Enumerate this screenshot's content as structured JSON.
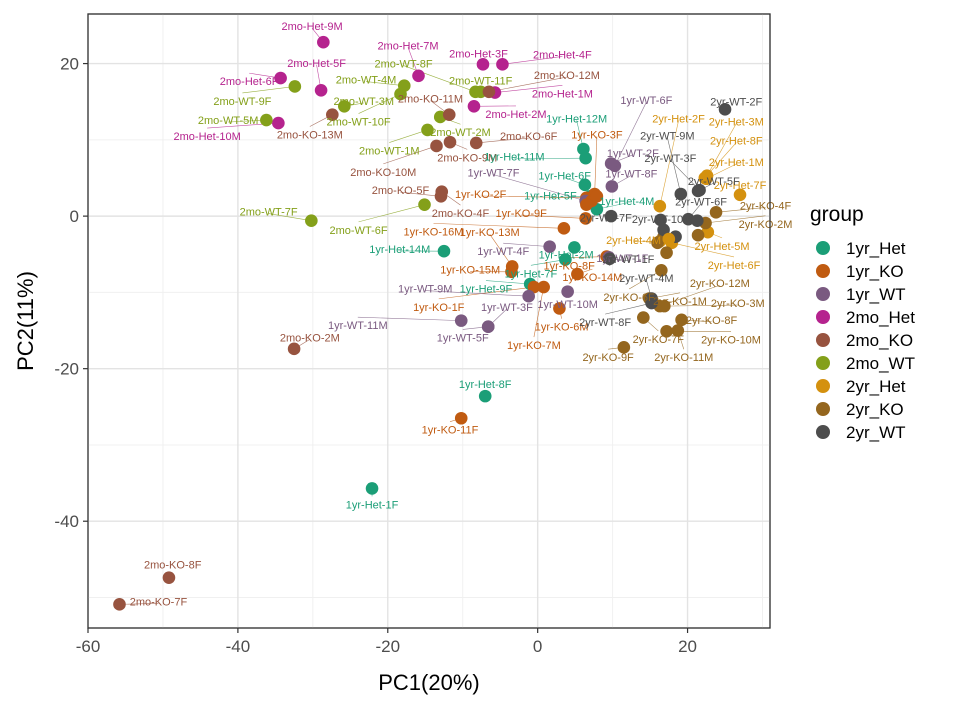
{
  "chart_data": {
    "type": "scatter",
    "xlabel": "PC1(20%)",
    "ylabel": "PC2(11%)",
    "xlim": [
      -60,
      31
    ],
    "ylim": [
      -54,
      26.5
    ],
    "x_ticks": [
      -60,
      -40,
      -20,
      0,
      20
    ],
    "y_ticks": [
      -40,
      -20,
      0,
      20
    ],
    "x_tick_labels": [
      "-60",
      "-40",
      "-20",
      "0",
      "20"
    ],
    "y_tick_labels": [
      "-40",
      "-20",
      "0",
      "20"
    ],
    "grid": true,
    "legend_position": "right",
    "legend": {
      "title": "group",
      "items": [
        "1yr_Het",
        "1yr_KO",
        "1yr_WT",
        "2mo_Het",
        "2mo_KO",
        "2mo_WT",
        "2yr_Het",
        "2yr_KO",
        "2yr_WT"
      ]
    },
    "colors": {
      "1yr_Het": "#1b9e77",
      "1yr_KO": "#c05b11",
      "1yr_WT": "#7a5a80",
      "2mo_Het": "#b5238e",
      "2mo_KO": "#97533f",
      "2mo_WT": "#84a01a",
      "2yr_Het": "#d4910f",
      "2yr_KO": "#94661e",
      "2yr_WT": "#4d4d4d"
    },
    "points": [
      {
        "label": "2mo-Het-9M",
        "group": "2mo_Het",
        "x": -28.6,
        "y": 22.8,
        "lx": -30.1,
        "ly": 24.9
      },
      {
        "label": "2mo-Het-5F",
        "group": "2mo_Het",
        "x": -28.9,
        "y": 16.5,
        "lx": -29.5,
        "ly": 20.1
      },
      {
        "label": "2mo-Het-6F",
        "group": "2mo_Het",
        "x": -34.3,
        "y": 18.1,
        "lx": -38.5,
        "ly": 17.7
      },
      {
        "label": "2mo-Het-10M",
        "group": "2mo_Het",
        "x": -34.6,
        "y": 12.2,
        "lx": -44.1,
        "ly": 10.5
      },
      {
        "label": "2mo-Het-7M",
        "group": "2mo_Het",
        "x": -15.9,
        "y": 18.4,
        "lx": -17.3,
        "ly": 22.4
      },
      {
        "label": "2mo-Het-3F",
        "group": "2mo_Het",
        "x": -7.3,
        "y": 19.9,
        "lx": -7.9,
        "ly": 21.3
      },
      {
        "label": "2mo-Het-4F",
        "group": "2mo_Het",
        "x": -4.7,
        "y": 19.9,
        "lx": 3.3,
        "ly": 21.2
      },
      {
        "label": "2mo-Het-1M",
        "group": "2mo_Het",
        "x": -5.7,
        "y": 16.2,
        "lx": 3.3,
        "ly": 16.1
      },
      {
        "label": "2mo-Het-2M",
        "group": "2mo_Het",
        "x": -8.5,
        "y": 14.4,
        "lx": -2.9,
        "ly": 13.4
      },
      {
        "label": "2mo-WT-4M",
        "group": "2mo_WT",
        "x": -17.8,
        "y": 17.1,
        "lx": -22.9,
        "ly": 17.9
      },
      {
        "label": "2mo-WT-8F",
        "group": "2mo_WT",
        "x": -8.3,
        "y": 16.3,
        "lx": -17.9,
        "ly": 20.0
      },
      {
        "label": "2mo-WT-11F",
        "group": "2mo_WT",
        "x": -7.6,
        "y": 16.3,
        "lx": -7.6,
        "ly": 17.8
      },
      {
        "label": "2mo-WT-9F",
        "group": "2mo_WT",
        "x": -32.4,
        "y": 17.0,
        "lx": -39.4,
        "ly": 15.1
      },
      {
        "label": "2mo-WT-3M",
        "group": "2mo_WT",
        "x": -25.8,
        "y": 14.4,
        "lx": -23.2,
        "ly": 15.1
      },
      {
        "label": "2mo-WT-5M",
        "group": "2mo_WT",
        "x": -36.2,
        "y": 12.6,
        "lx": -41.3,
        "ly": 12.6
      },
      {
        "label": "2mo-WT-10F",
        "group": "2mo_WT",
        "x": -18.3,
        "y": 16.0,
        "lx": -23.9,
        "ly": 12.4
      },
      {
        "label": "2mo-WT-1M",
        "group": "2mo_WT",
        "x": -14.7,
        "y": 11.3,
        "lx": -19.8,
        "ly": 8.6
      },
      {
        "label": "2mo-WT-2M",
        "group": "2mo_WT",
        "x": -13.0,
        "y": 13.0,
        "lx": -10.3,
        "ly": 11.0
      },
      {
        "label": "2mo-WT-7F",
        "group": "2mo_WT",
        "x": -30.2,
        "y": -0.6,
        "lx": -35.9,
        "ly": 0.6
      },
      {
        "label": "2mo-WT-6F",
        "group": "2mo_WT",
        "x": -15.1,
        "y": 1.5,
        "lx": -23.9,
        "ly": -1.8
      },
      {
        "label": "2mo-KO-12M",
        "group": "2mo_KO",
        "x": -6.5,
        "y": 16.3,
        "lx": 3.9,
        "ly": 18.5
      },
      {
        "label": "2mo-KO-11M",
        "group": "2mo_KO",
        "x": -11.8,
        "y": 13.3,
        "lx": -14.3,
        "ly": 15.4
      },
      {
        "label": "2mo-KO-13M",
        "group": "2mo_KO",
        "x": -27.4,
        "y": 13.3,
        "lx": -30.4,
        "ly": 10.7
      },
      {
        "label": "2mo-KO-6F",
        "group": "2mo_KO",
        "x": -8.2,
        "y": 9.6,
        "lx": -1.2,
        "ly": 10.5
      },
      {
        "label": "2mo-KO-9M",
        "group": "2mo_KO",
        "x": -11.7,
        "y": 9.7,
        "lx": -9.4,
        "ly": 7.7
      },
      {
        "label": "2mo-KO-10M",
        "group": "2mo_KO",
        "x": -13.5,
        "y": 9.2,
        "lx": -20.6,
        "ly": 5.8
      },
      {
        "label": "2mo-KO-5F",
        "group": "2mo_KO",
        "x": -12.9,
        "y": 2.6,
        "lx": -18.3,
        "ly": 3.4
      },
      {
        "label": "2mo-KO-4F",
        "group": "2mo_KO",
        "x": -12.8,
        "y": 3.2,
        "lx": -10.3,
        "ly": 0.4
      },
      {
        "label": "2mo-KO-2M",
        "group": "2mo_KO",
        "x": -32.5,
        "y": -17.4,
        "lx": -30.4,
        "ly": -15.9
      },
      {
        "label": "2mo-KO-8F",
        "group": "2mo_KO",
        "x": -49.2,
        "y": -47.4,
        "lx": -48.7,
        "ly": -45.7
      },
      {
        "label": "2mo-KO-7F",
        "group": "2mo_KO",
        "x": -55.8,
        "y": -50.9,
        "lx": -50.6,
        "ly": -50.5
      },
      {
        "label": "1yr-Het-12M",
        "group": "1yr_Het",
        "x": 6.1,
        "y": 8.8,
        "lx": 5.2,
        "ly": 12.8
      },
      {
        "label": "1yr-Het-11M",
        "group": "1yr_Het",
        "x": 6.4,
        "y": 7.6,
        "lx": -3.1,
        "ly": 7.8
      },
      {
        "label": "1yr-Het-6F",
        "group": "1yr_Het",
        "x": 6.3,
        "y": 4.1,
        "lx": 3.6,
        "ly": 5.3
      },
      {
        "label": "1yr-Het-5F",
        "group": "1yr_Het",
        "x": 7.0,
        "y": 2.6,
        "lx": 1.7,
        "ly": 2.7
      },
      {
        "label": "1yr-Het-4M",
        "group": "1yr_Het",
        "x": 7.9,
        "y": 0.9,
        "lx": 11.9,
        "ly": 2.0
      },
      {
        "label": "1yr-Het-14M",
        "group": "1yr_Het",
        "x": -12.5,
        "y": -4.6,
        "lx": -18.4,
        "ly": -4.3
      },
      {
        "label": "1yr-Het-2M",
        "group": "1yr_Het",
        "x": 4.9,
        "y": -4.1,
        "lx": 3.8,
        "ly": -5.0
      },
      {
        "label": "1yr-Het-7F",
        "group": "1yr_Het",
        "x": 3.7,
        "y": -5.7,
        "lx": -0.9,
        "ly": -7.5
      },
      {
        "label": "1yr-Het-9F",
        "group": "1yr_Het",
        "x": -1.0,
        "y": -8.9,
        "lx": -6.9,
        "ly": -9.5
      },
      {
        "label": "1yr-Het-8F",
        "group": "1yr_Het",
        "x": -7.0,
        "y": -23.6,
        "lx": -7.0,
        "ly": -22.0
      },
      {
        "label": "1yr-Het-1F",
        "group": "1yr_Het",
        "x": -22.1,
        "y": -35.7,
        "lx": -22.1,
        "ly": -37.8
      },
      {
        "label": "1yr-KO-3F",
        "group": "1yr_KO",
        "x": 7.6,
        "y": 2.9,
        "lx": 7.9,
        "ly": 10.7
      },
      {
        "label": "1yr-KO-2F",
        "group": "1yr_KO",
        "x": 6.5,
        "y": 2.4,
        "lx": -7.6,
        "ly": 2.9
      },
      {
        "label": "1yr-KO-9F",
        "group": "1yr_KO",
        "x": 6.4,
        "y": -0.3,
        "lx": -2.2,
        "ly": 0.4
      },
      {
        "label": "1yr-KO-16M",
        "group": "1yr_KO",
        "x": 3.5,
        "y": -1.6,
        "lx": -13.9,
        "ly": -2.0
      },
      {
        "label": "1yr-KO-13M",
        "group": "1yr_KO",
        "x": -3.4,
        "y": -6.6,
        "lx": -6.4,
        "ly": -2.1
      },
      {
        "label": "1yr-KO-8F",
        "group": "1yr_KO",
        "x": 9.2,
        "y": -5.3,
        "lx": 4.2,
        "ly": -6.5
      },
      {
        "label": "1yr-KO-15M",
        "group": "1yr_KO",
        "x": -3.5,
        "y": -7.3,
        "lx": -9.0,
        "ly": -7.0
      },
      {
        "label": "1yr-KO-14M",
        "group": "1yr_KO",
        "x": 5.3,
        "y": -7.6,
        "lx": 7.3,
        "ly": -8.0
      },
      {
        "label": "1yr-KO-1F",
        "group": "1yr_KO",
        "x": -0.5,
        "y": -9.3,
        "lx": -13.2,
        "ly": -11.9
      },
      {
        "label": "1yr-KO-6M",
        "group": "1yr_KO",
        "x": 2.9,
        "y": -12.1,
        "lx": 3.2,
        "ly": -14.5
      },
      {
        "label": "1yr-KO-7M",
        "group": "1yr_KO",
        "x": 0.8,
        "y": -9.3,
        "lx": -0.5,
        "ly": -16.9
      },
      {
        "label": "1yr-KO-11F",
        "group": "1yr_KO",
        "x": -10.2,
        "y": -26.5,
        "lx": -11.7,
        "ly": -28.0
      },
      {
        "label": "1yr-WT-6F",
        "group": "1yr_WT",
        "x": 10.3,
        "y": 6.6,
        "lx": 14.5,
        "ly": 15.2
      },
      {
        "label": "1yr-WT-2F",
        "group": "1yr_WT",
        "x": 9.8,
        "y": 6.9,
        "lx": 12.7,
        "ly": 8.3
      },
      {
        "label": "1yr-WT-8F",
        "group": "1yr_WT",
        "x": 9.9,
        "y": 3.9,
        "lx": 12.5,
        "ly": 5.6
      },
      {
        "label": "1yr-WT-7F",
        "group": "1yr_WT",
        "x": 6.4,
        "y": 2.0,
        "lx": -5.9,
        "ly": 5.7
      },
      {
        "label": "1yr-WT-4F",
        "group": "1yr_WT",
        "x": 1.6,
        "y": -4.0,
        "lx": -4.6,
        "ly": -4.6
      },
      {
        "label": "1yr-WT-1F",
        "group": "1yr_WT",
        "x": 9.5,
        "y": -5.4,
        "lx": 11.3,
        "ly": -5.5
      },
      {
        "label": "1yr-WT-10M",
        "group": "1yr_WT",
        "x": 4.0,
        "y": -9.9,
        "lx": 4.0,
        "ly": -11.5
      },
      {
        "label": "1yr-WT-9M",
        "group": "1yr_WT",
        "x": -1.2,
        "y": -10.5,
        "lx": -15.0,
        "ly": -9.5
      },
      {
        "label": "1yr-WT-3F",
        "group": "1yr_WT",
        "x": -6.6,
        "y": -14.5,
        "lx": -4.1,
        "ly": -11.9
      },
      {
        "label": "1yr-WT-11M",
        "group": "1yr_WT",
        "x": -10.2,
        "y": -13.7,
        "lx": -24.0,
        "ly": -14.3
      },
      {
        "label": "1yr-WT-5F",
        "group": "1yr_WT",
        "x": -6.6,
        "y": -14.5,
        "lx": -10.0,
        "ly": -15.9
      },
      {
        "label": "2yr-Het-2F",
        "group": "2yr_Het",
        "x": 16.3,
        "y": 1.3,
        "lx": 18.8,
        "ly": 12.8
      },
      {
        "label": "2yr-Het-3M",
        "group": "2yr_Het",
        "x": 22.6,
        "y": 5.3,
        "lx": 26.5,
        "ly": 12.4
      },
      {
        "label": "2yr-Het-8F",
        "group": "2yr_Het",
        "x": 22.3,
        "y": 5.0,
        "lx": 26.5,
        "ly": 9.9
      },
      {
        "label": "2yr-Het-1M",
        "group": "2yr_Het",
        "x": 22.5,
        "y": 4.9,
        "lx": 26.5,
        "ly": 7.1
      },
      {
        "label": "2yr-Het-7F",
        "group": "2yr_Het",
        "x": 27.0,
        "y": 2.8,
        "lx": 27.0,
        "ly": 4.1
      },
      {
        "label": "2yr-Het-4M",
        "group": "2yr_Het",
        "x": 16.3,
        "y": -3.3,
        "lx": 12.8,
        "ly": -3.1
      },
      {
        "label": "2yr-Het-5M",
        "group": "2yr_Het",
        "x": 22.7,
        "y": -2.1,
        "lx": 24.6,
        "ly": -3.9
      },
      {
        "label": "2yr-Het-6F",
        "group": "2yr_Het",
        "x": 17.9,
        "y": -3.5,
        "lx": 26.2,
        "ly": -6.4
      },
      {
        "label": "2yr-KO-4F",
        "group": "2yr_KO",
        "x": 23.8,
        "y": 0.5,
        "lx": 30.4,
        "ly": 1.4
      },
      {
        "label": "2yr-KO-2M",
        "group": "2yr_KO",
        "x": 22.4,
        "y": -0.9,
        "lx": 30.4,
        "ly": -1.0
      },
      {
        "label": "2yr-KO-6F",
        "group": "2yr_KO",
        "x": 16.5,
        "y": -7.1,
        "lx": 12.2,
        "ly": -10.6
      },
      {
        "label": "2yr-KO-12M",
        "group": "2yr_KO",
        "x": 16.3,
        "y": -11.8,
        "lx": 24.3,
        "ly": -8.8
      },
      {
        "label": "2yr-KO-3M",
        "group": "2yr_KO",
        "x": 16.9,
        "y": -11.8,
        "lx": 26.7,
        "ly": -11.4
      },
      {
        "label": "2yr-KO-1M",
        "group": "2yr_KO",
        "x": 14.9,
        "y": -10.8,
        "lx": 19.0,
        "ly": -11.1
      },
      {
        "label": "2yr-KO-8F",
        "group": "2yr_KO",
        "x": 19.2,
        "y": -13.6,
        "lx": 23.2,
        "ly": -13.6
      },
      {
        "label": "2yr-KO-7F",
        "group": "2yr_KO",
        "x": 14.1,
        "y": -13.3,
        "lx": 16.1,
        "ly": -16.1
      },
      {
        "label": "2yr-KO-10M",
        "group": "2yr_KO",
        "x": 17.2,
        "y": -15.1,
        "lx": 25.8,
        "ly": -16.2
      },
      {
        "label": "2yr-KO-9F",
        "group": "2yr_KO",
        "x": 11.5,
        "y": -17.2,
        "lx": 9.4,
        "ly": -18.5
      },
      {
        "label": "2yr-KO-11M",
        "group": "2yr_KO",
        "x": 18.7,
        "y": -15.0,
        "lx": 19.5,
        "ly": -18.5
      },
      {
        "label": "2yr-WT-2F",
        "group": "2yr_WT",
        "x": 25.0,
        "y": 14.0,
        "lx": 26.5,
        "ly": 15.0
      },
      {
        "label": "2yr-WT-9M",
        "group": "2yr_WT",
        "x": 19.1,
        "y": 2.9,
        "lx": 17.3,
        "ly": 10.6
      },
      {
        "label": "2yr-WT-3F",
        "group": "2yr_WT",
        "x": 21.6,
        "y": 3.4,
        "lx": 17.7,
        "ly": 7.6
      },
      {
        "label": "2yr-WT-5F",
        "group": "2yr_WT",
        "x": 21.4,
        "y": 3.3,
        "lx": 23.5,
        "ly": 4.6
      },
      {
        "label": "2yr-WT-6F",
        "group": "2yr_WT",
        "x": 20.1,
        "y": -0.4,
        "lx": 21.8,
        "ly": 1.9
      },
      {
        "label": "2yr-WT-7F",
        "group": "2yr_WT",
        "x": 9.8,
        "y": 0.0,
        "lx": 9.1,
        "ly": -0.2
      },
      {
        "label": "2yr-WT-10M",
        "group": "2yr_WT",
        "x": 16.4,
        "y": -0.5,
        "lx": 16.6,
        "ly": -0.4
      },
      {
        "label": "2yr-WT-1F",
        "group": "2yr_WT",
        "x": 9.6,
        "y": -5.6,
        "lx": 12.1,
        "ly": -5.6
      },
      {
        "label": "2yr-WT-4M",
        "group": "2yr_WT",
        "x": 15.2,
        "y": -10.8,
        "lx": 14.5,
        "ly": -8.1
      },
      {
        "label": "2yr-WT-8F",
        "group": "2yr_WT",
        "x": 15.2,
        "y": -11.4,
        "lx": 9.0,
        "ly": -13.9
      },
      {
        "label": "",
        "group": "2yr_KO",
        "x": 16.0,
        "y": -3.5
      },
      {
        "label": "",
        "group": "2yr_KO",
        "x": 16.8,
        "y": -2.7
      },
      {
        "label": "",
        "group": "2yr_KO",
        "x": 17.2,
        "y": -4.8
      },
      {
        "label": "",
        "group": "2yr_KO",
        "x": 21.4,
        "y": -2.5
      },
      {
        "label": "",
        "group": "2yr_WT",
        "x": 16.8,
        "y": -1.8
      },
      {
        "label": "",
        "group": "2yr_WT",
        "x": 18.4,
        "y": -2.7
      },
      {
        "label": "",
        "group": "2yr_WT",
        "x": 21.3,
        "y": -0.6
      },
      {
        "label": "",
        "group": "2yr_Het",
        "x": 17.5,
        "y": -3.0
      },
      {
        "label": "",
        "group": "1yr_KO",
        "x": 7.2,
        "y": 2.0
      },
      {
        "label": "",
        "group": "1yr_KO",
        "x": 6.5,
        "y": 1.5
      },
      {
        "label": "",
        "group": "1yr_KO",
        "x": 7.9,
        "y": 2.6
      }
    ]
  }
}
